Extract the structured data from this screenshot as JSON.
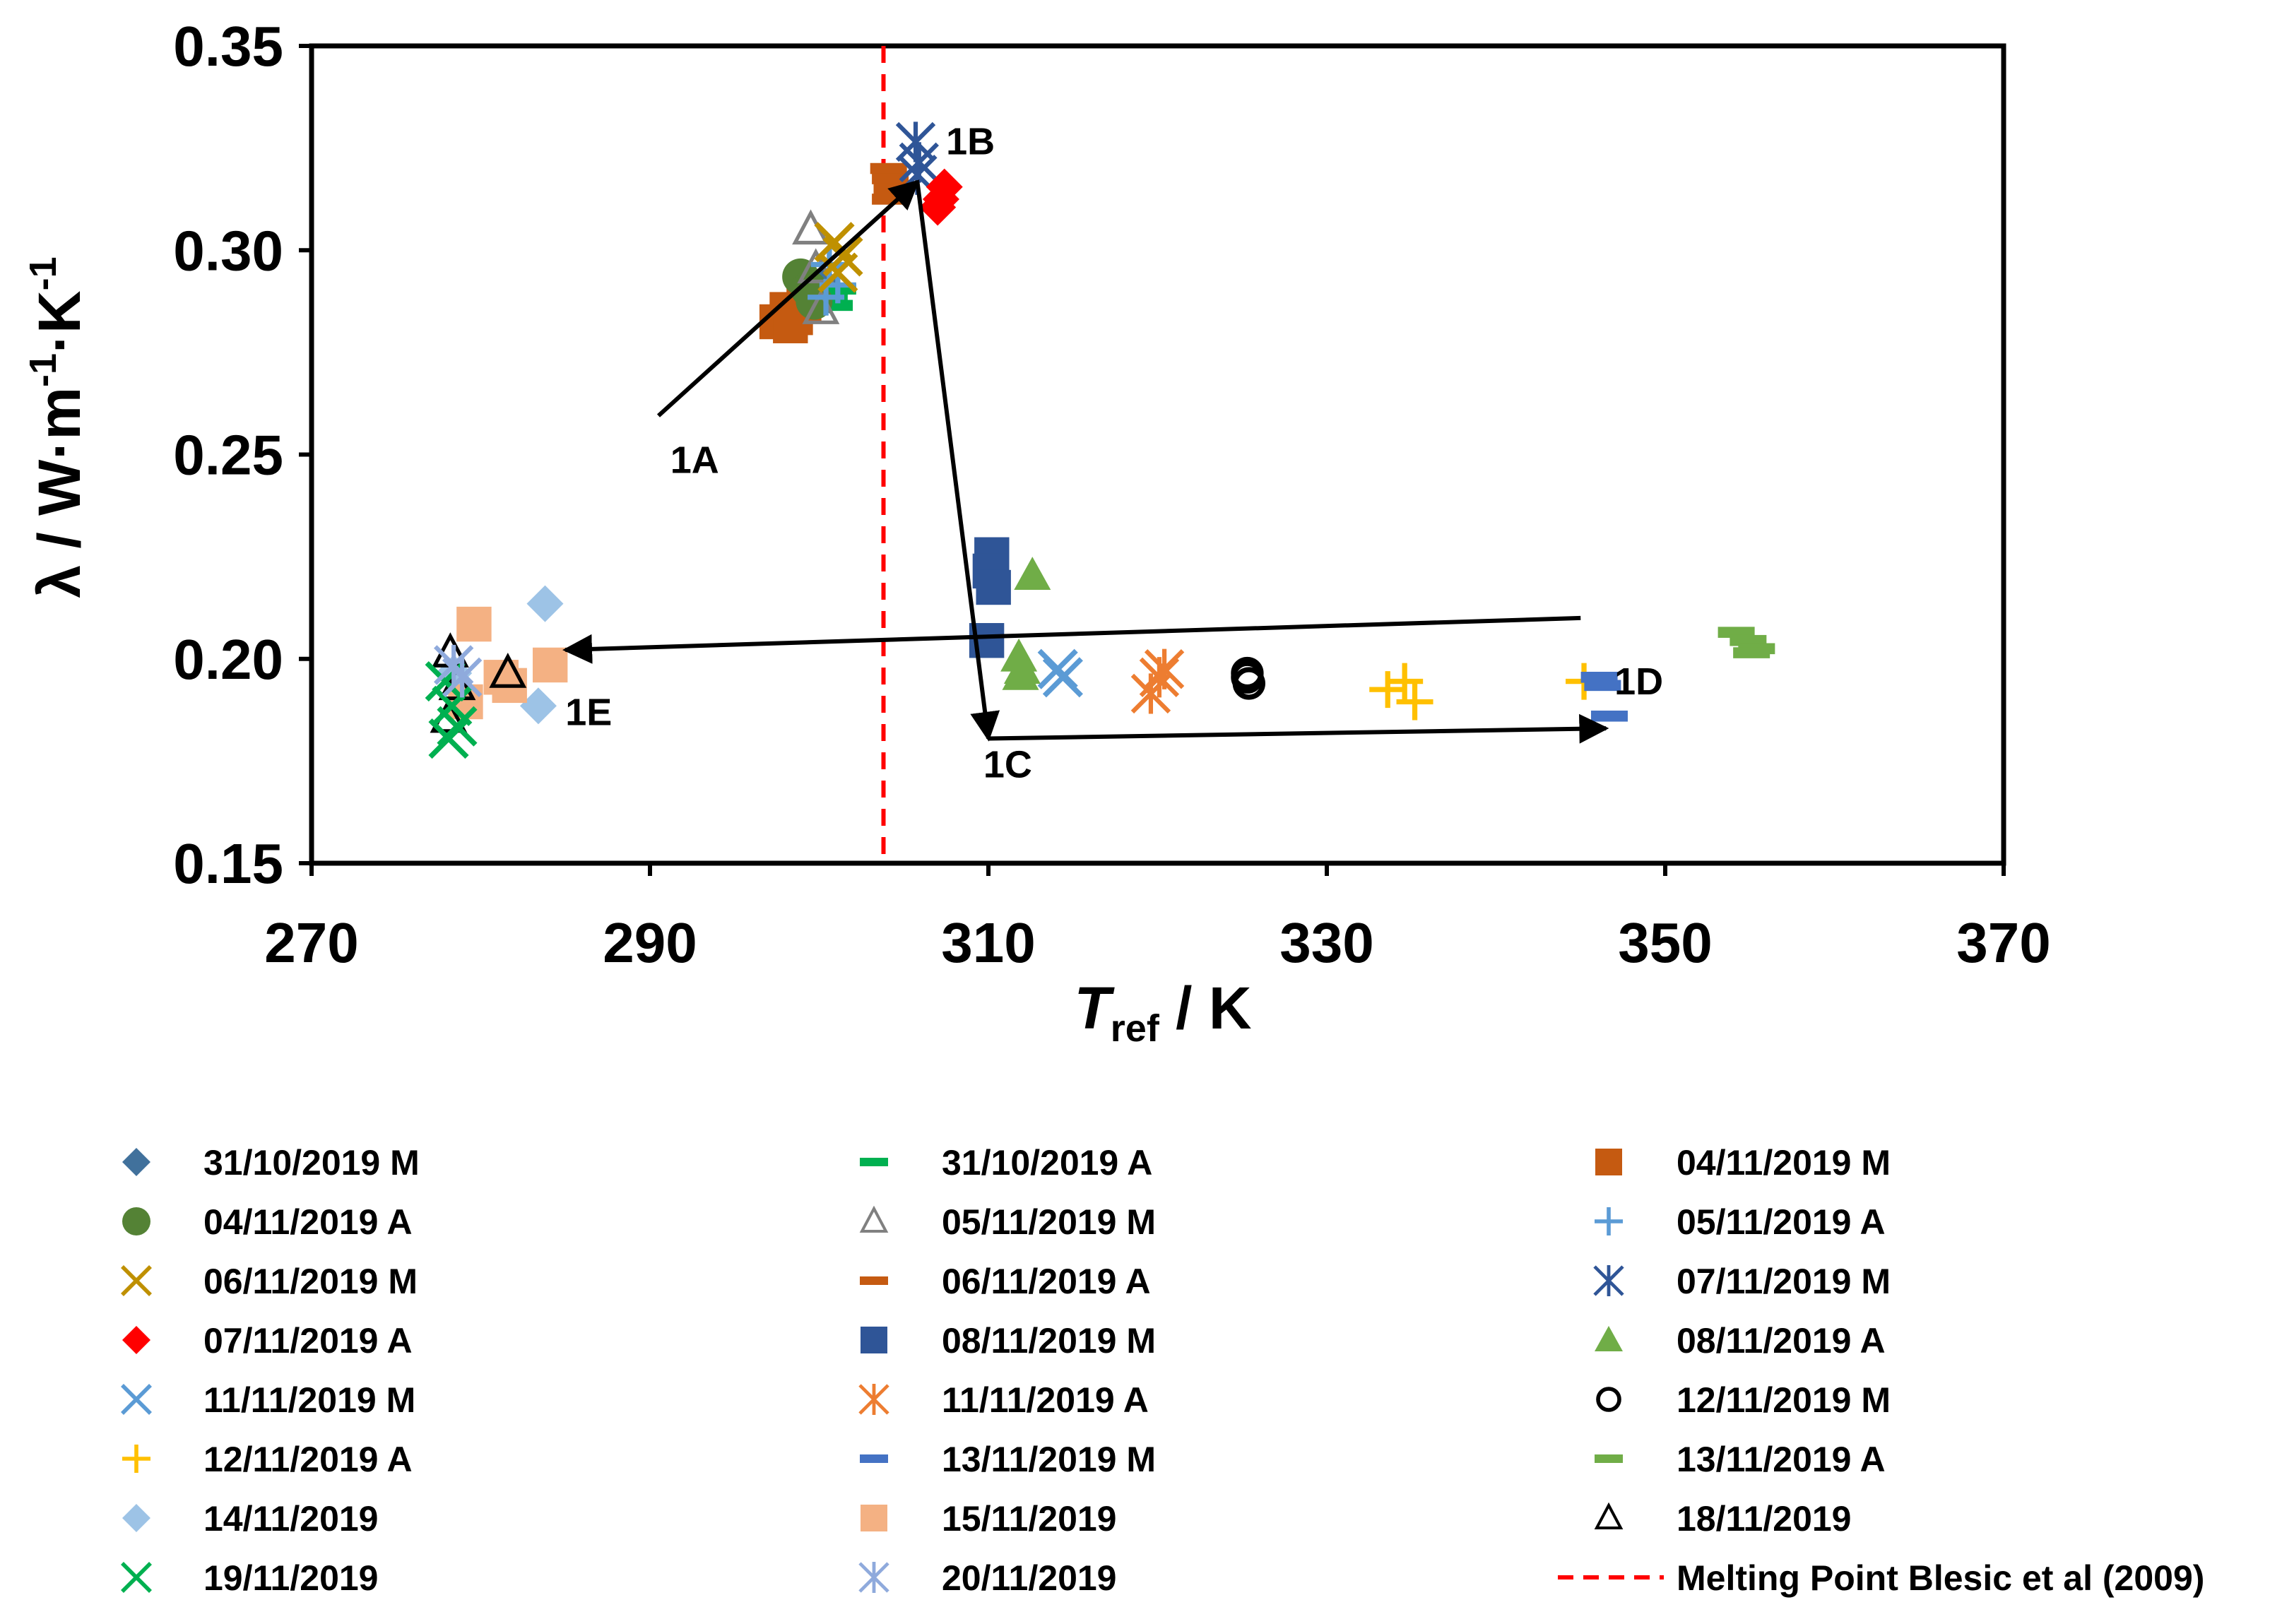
{
  "chart_data": {
    "type": "scatter",
    "xlabel": "T",
    "xlabel_sub": "ref",
    "xlabel_unit": " / K",
    "ylabel": "λ / W·m",
    "ylabel_sup1": "-1",
    "ylabel_mid": "·K",
    "ylabel_sup2": "-1",
    "xlim": [
      270,
      370
    ],
    "ylim": [
      0.15,
      0.35
    ],
    "xticks": [
      "270",
      "290",
      "310",
      "330",
      "350",
      "370"
    ],
    "yticks": [
      "0.15",
      "0.20",
      "0.25",
      "0.30",
      "0.35"
    ],
    "grid": false,
    "reference_line": {
      "x": 303.8,
      "label": "Melting Point Blesic et al (2009)",
      "color": "#FF0000"
    },
    "annotations": [
      {
        "text": "1A",
        "x": 291.2,
        "y": 0.2455
      },
      {
        "text": "1B",
        "x": 307.5,
        "y": 0.3235
      },
      {
        "text": "1C",
        "x": 309.7,
        "y": 0.171
      },
      {
        "text": "1D",
        "x": 347.0,
        "y": 0.1913
      },
      {
        "text": "1E",
        "x": 285.0,
        "y": 0.1838
      }
    ],
    "arrows": [
      {
        "from": [
          290.5,
          0.2595
        ],
        "to": [
          305.8,
          0.3168
        ]
      },
      {
        "from": [
          305.8,
          0.3168
        ],
        "to": [
          310.0,
          0.1805
        ]
      },
      {
        "from": [
          310.0,
          0.1805
        ],
        "to": [
          346.5,
          0.183
        ]
      },
      {
        "from": [
          345.0,
          0.21
        ],
        "to": [
          285.0,
          0.2022
        ]
      }
    ],
    "series": [
      {
        "name": "31/10/2019 M",
        "marker": "diamond",
        "color": "#41719C",
        "x": [
          300.2,
          300.6
        ],
        "y": [
          0.292,
          0.289
        ]
      },
      {
        "name": "31/10/2019 A",
        "marker": "dash",
        "color": "#00B050",
        "x": [
          300.6,
          301.1,
          300.9
        ],
        "y": [
          0.2885,
          0.2905,
          0.2865
        ]
      },
      {
        "name": "04/11/2019 M",
        "marker": "square",
        "color": "#C55A11",
        "x": [
          297.5,
          298.1,
          298.6,
          299.1,
          298.3
        ],
        "y": [
          0.2825,
          0.2855,
          0.2835,
          0.2865,
          0.2815
        ]
      },
      {
        "name": "04/11/2019 A",
        "marker": "circle",
        "color": "#548235",
        "x": [
          298.9,
          299.4,
          299.7
        ],
        "y": [
          0.2935,
          0.2905,
          0.2875
        ]
      },
      {
        "name": "05/11/2019 M",
        "marker": "triangle-open",
        "color": "#808080",
        "x": [
          299.5,
          299.8,
          300.1
        ],
        "y": [
          0.305,
          0.2955,
          0.2855
        ]
      },
      {
        "name": "05/11/2019 A",
        "marker": "plus",
        "color": "#5B9BD5",
        "x": [
          300.6,
          301.1,
          300.4
        ],
        "y": [
          0.2965,
          0.2915,
          0.2885
        ]
      },
      {
        "name": "06/11/2019 M",
        "marker": "x",
        "color": "#BF9000",
        "x": [
          300.9,
          301.4,
          301.1
        ],
        "y": [
          0.302,
          0.2985,
          0.2945
        ]
      },
      {
        "name": "06/11/2019 A",
        "marker": "dash",
        "color": "#C55A11",
        "x": [
          304.1,
          304.2,
          304.3,
          304.2
        ],
        "y": [
          0.32,
          0.3175,
          0.315,
          0.3125
        ]
      },
      {
        "name": "07/11/2019 M",
        "marker": "star",
        "color": "#2F5597",
        "x": [
          305.7,
          305.9,
          305.8
        ],
        "y": [
          0.3265,
          0.3215,
          0.3185
        ]
      },
      {
        "name": "07/11/2019 A",
        "marker": "diamond",
        "color": "#FF0000",
        "x": [
          307.4,
          307.2,
          307.0
        ],
        "y": [
          0.3155,
          0.3125,
          0.3105
        ]
      },
      {
        "name": "08/11/2019 M",
        "marker": "square",
        "color": "#2F5597",
        "x": [
          310.2,
          310.1,
          310.3,
          309.9
        ],
        "y": [
          0.2255,
          0.2215,
          0.2175,
          0.2045
        ]
      },
      {
        "name": "08/11/2019 A",
        "marker": "triangle",
        "color": "#70AD47",
        "x": [
          312.6,
          311.8,
          312.0,
          311.9
        ],
        "y": [
          0.2205,
          0.2005,
          0.1975,
          0.196
        ]
      },
      {
        "name": "11/11/2019 M",
        "marker": "x",
        "color": "#5B9BD5",
        "x": [
          314.1,
          314.4
        ],
        "y": [
          0.1975,
          0.1955
        ]
      },
      {
        "name": "11/11/2019 A",
        "marker": "star",
        "color": "#ED7D31",
        "x": [
          319.6,
          320.4,
          320.1
        ],
        "y": [
          0.1915,
          0.1975,
          0.1955
        ]
      },
      {
        "name": "12/11/2019 M",
        "marker": "circle-open",
        "color": "#000000",
        "x": [
          325.3,
          325.4,
          325.3
        ],
        "y": [
          0.1955,
          0.194,
          0.1965
        ]
      },
      {
        "name": "12/11/2019 A",
        "marker": "plus",
        "color": "#FFC000",
        "x": [
          333.6,
          334.6,
          335.2,
          345.2
        ],
        "y": [
          0.1925,
          0.1945,
          0.1895,
          0.1945
        ]
      },
      {
        "name": "13/11/2019 M",
        "marker": "dash",
        "color": "#4472C4",
        "x": [
          346.1,
          346.3,
          346.7
        ],
        "y": [
          0.1955,
          0.1935,
          0.186
        ]
      },
      {
        "name": "13/11/2019 A",
        "marker": "dash",
        "color": "#70AD47",
        "x": [
          354.2,
          354.9,
          355.4,
          355.1
        ],
        "y": [
          0.2065,
          0.2045,
          0.2025,
          0.2015
        ]
      },
      {
        "name": "14/11/2019",
        "marker": "diamond",
        "color": "#9DC3E6",
        "x": [
          283.8,
          283.4,
          278.4
        ],
        "y": [
          0.2135,
          0.1885,
          0.1965
        ]
      },
      {
        "name": "15/11/2019",
        "marker": "square",
        "color": "#F4B183",
        "x": [
          279.6,
          284.1,
          281.2,
          279.1,
          281.7
        ],
        "y": [
          0.2085,
          0.1985,
          0.1955,
          0.1895,
          0.1935
        ]
      },
      {
        "name": "18/11/2019",
        "marker": "triangle-open",
        "color": "#000000",
        "x": [
          281.6,
          278.2,
          278.6,
          278.1
        ],
        "y": [
          0.1965,
          0.2015,
          0.1935,
          0.1855
        ]
      },
      {
        "name": "19/11/2019",
        "marker": "x",
        "color": "#00B050",
        "x": [
          277.9,
          278.3,
          278.6,
          278.1
        ],
        "y": [
          0.1945,
          0.1885,
          0.1835,
          0.1805
        ]
      },
      {
        "name": "20/11/2019",
        "marker": "star",
        "color": "#8FAADC",
        "x": [
          278.4,
          278.9
        ],
        "y": [
          0.1985,
          0.1955
        ]
      }
    ]
  }
}
